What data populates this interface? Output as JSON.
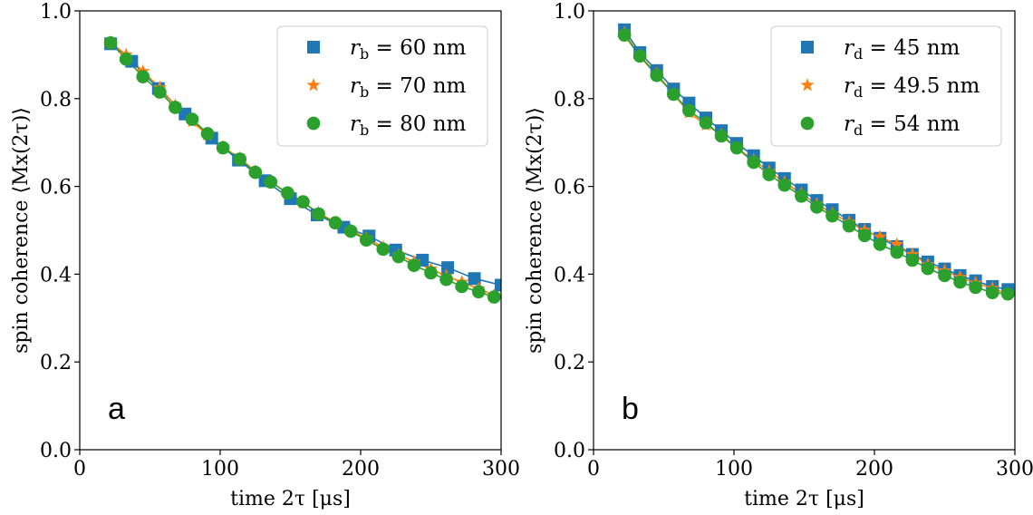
{
  "chart_data": [
    {
      "type": "scatter",
      "panel_label": "a",
      "xlabel": "time 2τ [μs]",
      "ylabel": "spin coherence ⟨Mx(2τ)⟩",
      "xlim": [
        0,
        300
      ],
      "ylim": [
        0.0,
        1.0
      ],
      "xticks": [
        "0",
        "100",
        "200",
        "300"
      ],
      "yticks": [
        "0.0",
        "0.2",
        "0.4",
        "0.6",
        "0.8",
        "1.0"
      ],
      "legend_position": "top-right",
      "series": [
        {
          "name": "rb = 60 nm",
          "sym": "r",
          "sub": "b",
          "rest": " = 60 nm",
          "marker": "square",
          "color": "#1f77b4",
          "x": [
            22,
            37,
            56,
            75,
            94,
            113,
            132,
            150,
            169,
            188,
            206,
            225,
            244,
            262,
            281,
            300
          ],
          "y": [
            0.925,
            0.885,
            0.823,
            0.765,
            0.71,
            0.66,
            0.613,
            0.572,
            0.535,
            0.507,
            0.487,
            0.455,
            0.432,
            0.415,
            0.39,
            0.375
          ]
        },
        {
          "name": "rb = 70 nm",
          "sym": "r",
          "sub": "b",
          "rest": " = 70 nm",
          "marker": "star",
          "color": "#ff7f0e",
          "x": [
            22,
            33,
            45,
            57,
            68,
            80,
            91,
            102,
            114,
            125,
            136,
            148,
            159,
            170,
            182,
            193,
            204,
            216,
            227,
            238,
            250,
            261,
            272,
            284,
            295
          ],
          "y": [
            0.928,
            0.9,
            0.862,
            0.825,
            0.785,
            0.748,
            0.717,
            0.69,
            0.664,
            0.635,
            0.61,
            0.585,
            0.563,
            0.54,
            0.518,
            0.5,
            0.482,
            0.462,
            0.444,
            0.428,
            0.412,
            0.396,
            0.382,
            0.367,
            0.352
          ]
        },
        {
          "name": "rb = 80 nm",
          "sym": "r",
          "sub": "b",
          "rest": " = 80 nm",
          "marker": "circle",
          "color": "#2ca02c",
          "x": [
            22,
            33,
            45,
            57,
            68,
            80,
            91,
            102,
            114,
            125,
            136,
            148,
            159,
            170,
            182,
            193,
            204,
            216,
            227,
            238,
            250,
            261,
            272,
            284,
            295
          ],
          "y": [
            0.927,
            0.89,
            0.85,
            0.815,
            0.78,
            0.753,
            0.72,
            0.688,
            0.662,
            0.632,
            0.61,
            0.585,
            0.565,
            0.537,
            0.517,
            0.498,
            0.478,
            0.457,
            0.44,
            0.42,
            0.403,
            0.388,
            0.372,
            0.36,
            0.348
          ]
        }
      ]
    },
    {
      "type": "scatter",
      "panel_label": "b",
      "xlabel": "time 2τ [μs]",
      "ylabel": "spin coherence ⟨Mx(2τ)⟩",
      "xlim": [
        0,
        300
      ],
      "ylim": [
        0.0,
        1.0
      ],
      "xticks": [
        "0",
        "100",
        "200",
        "300"
      ],
      "yticks": [
        "0.0",
        "0.2",
        "0.4",
        "0.6",
        "0.8",
        "1.0"
      ],
      "legend_position": "top-right",
      "series": [
        {
          "name": "rd = 45 nm",
          "sym": "r",
          "sub": "d",
          "rest": " = 45 nm",
          "marker": "square",
          "color": "#1f77b4",
          "x": [
            22,
            33,
            45,
            57,
            68,
            80,
            91,
            102,
            114,
            125,
            136,
            148,
            159,
            170,
            182,
            193,
            204,
            216,
            227,
            238,
            250,
            261,
            272,
            284,
            295
          ],
          "y": [
            0.957,
            0.905,
            0.864,
            0.822,
            0.79,
            0.756,
            0.727,
            0.698,
            0.67,
            0.642,
            0.618,
            0.592,
            0.568,
            0.547,
            0.523,
            0.502,
            0.482,
            0.463,
            0.445,
            0.428,
            0.412,
            0.397,
            0.385,
            0.372,
            0.365
          ]
        },
        {
          "name": "rd = 49.5 nm",
          "sym": "r",
          "sub": "d",
          "rest": " = 49.5 nm",
          "marker": "star",
          "color": "#ff7f0e",
          "x": [
            22,
            33,
            45,
            57,
            68,
            80,
            91,
            102,
            114,
            125,
            136,
            148,
            159,
            170,
            182,
            193,
            204,
            216,
            227,
            238,
            250,
            261,
            272,
            284,
            295
          ],
          "y": [
            0.95,
            0.898,
            0.857,
            0.81,
            0.768,
            0.74,
            0.718,
            0.688,
            0.66,
            0.634,
            0.61,
            0.583,
            0.56,
            0.538,
            0.519,
            0.5,
            0.485,
            0.468,
            0.445,
            0.422,
            0.408,
            0.393,
            0.38,
            0.368,
            0.355
          ]
        },
        {
          "name": "rd = 54 nm",
          "sym": "r",
          "sub": "d",
          "rest": " = 54 nm",
          "marker": "circle",
          "color": "#2ca02c",
          "x": [
            22,
            33,
            45,
            57,
            68,
            80,
            91,
            102,
            114,
            125,
            136,
            148,
            159,
            170,
            182,
            193,
            204,
            216,
            227,
            238,
            250,
            261,
            272,
            284,
            295
          ],
          "y": [
            0.945,
            0.897,
            0.853,
            0.81,
            0.773,
            0.745,
            0.715,
            0.688,
            0.655,
            0.627,
            0.603,
            0.578,
            0.553,
            0.533,
            0.51,
            0.488,
            0.468,
            0.45,
            0.432,
            0.413,
            0.397,
            0.382,
            0.37,
            0.358,
            0.355
          ]
        }
      ]
    }
  ]
}
